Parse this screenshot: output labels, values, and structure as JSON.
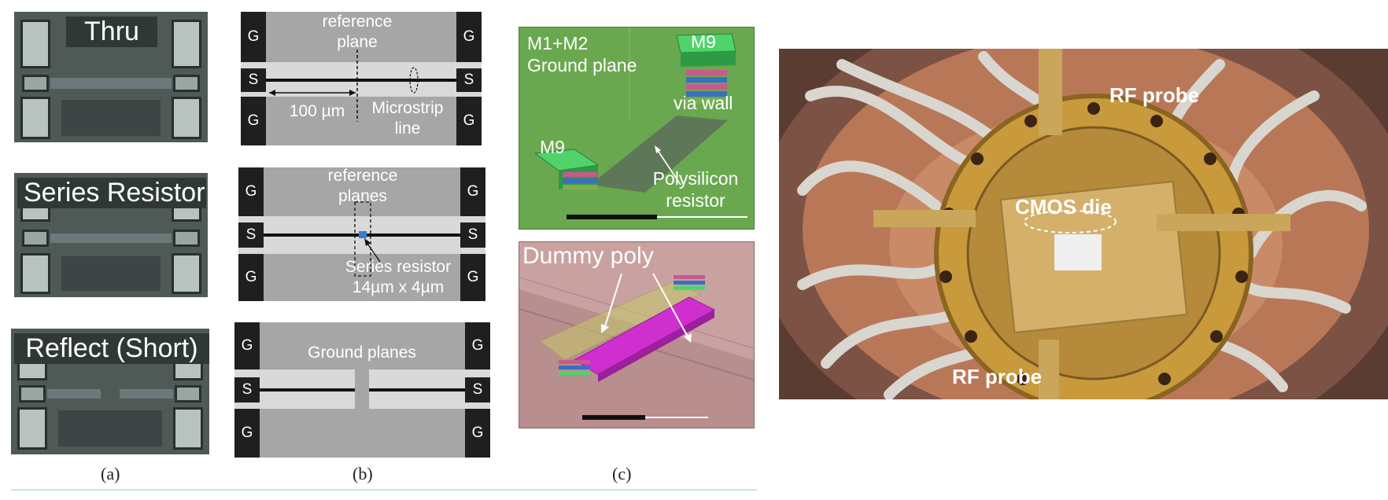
{
  "micrographs": {
    "thru_title": "Thru",
    "series_title": "Series Resistor",
    "reflect_title": "Reflect (Short)"
  },
  "schematics": {
    "port_g": "G",
    "port_s": "S",
    "thru": {
      "ref_plane": "reference\nplane",
      "length": "100 µm",
      "microstrip": "Microstrip\nline"
    },
    "series": {
      "ref_planes": "reference\nplanes",
      "resistor": "Series resistor\n14µm x 4µm"
    },
    "reflect": {
      "ground_planes": "Ground planes"
    }
  },
  "views3d": {
    "top": {
      "ground_plane": "M1+M2\nGround plane",
      "m9_top": "M9",
      "via_wall": "via wall",
      "m9_left": "M9",
      "poly": "Polysilicon\nresistor"
    },
    "bottom": {
      "dummy_poly": "Dummy poly"
    }
  },
  "photo": {
    "rf_probe_top": "RF probe",
    "cmos_die": "CMOS die",
    "rf_probe_bottom": "RF probe"
  },
  "captions": {
    "a": "(a)",
    "b": "(b)",
    "c": "(c)"
  },
  "colors": {
    "pcb_green": "#6aa84f",
    "poly_magenta": "#d02fd0",
    "copper": "#b87858",
    "schematic_grey": "#a6a6a6"
  }
}
